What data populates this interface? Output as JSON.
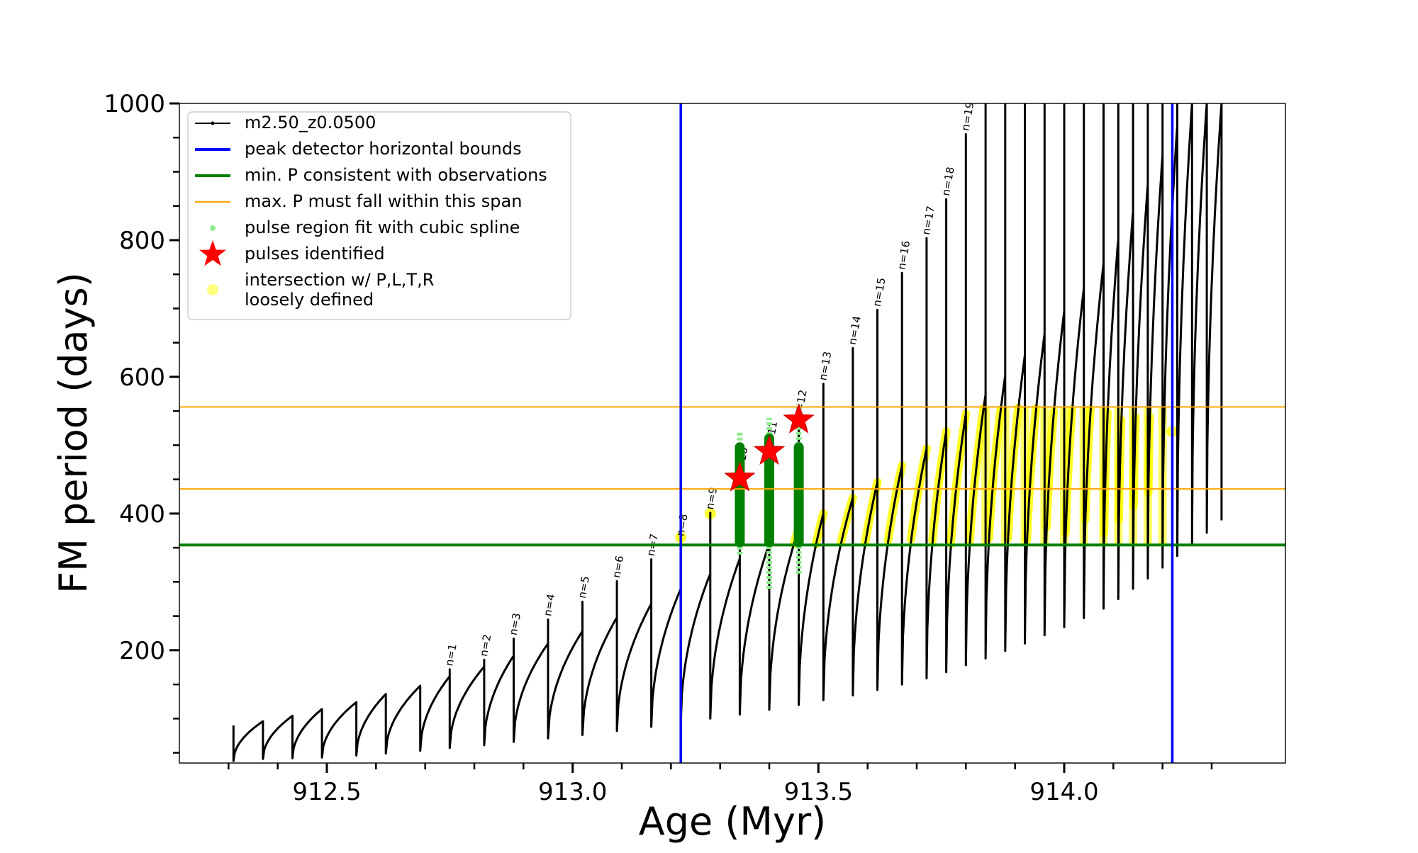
{
  "chart_data": {
    "type": "line",
    "title": "",
    "xlabel": "Age (Myr)",
    "ylabel": "FM period (days)",
    "xlim": [
      912.2,
      914.45
    ],
    "ylim": [
      35,
      1000
    ],
    "x_ticks": [
      912.5,
      913.0,
      913.5,
      914.0
    ],
    "x_tick_labels": [
      "912.5",
      "913.0",
      "913.5",
      "914.0"
    ],
    "y_ticks": [
      200,
      400,
      600,
      800,
      1000
    ],
    "y_tick_labels": [
      "200",
      "400",
      "600",
      "800",
      "1000"
    ],
    "grid": false,
    "legend_position": "top-left",
    "legend": [
      {
        "label": "m2.50_z0.0500",
        "color": "#000000",
        "kind": "line-marker"
      },
      {
        "label": "peak detector horizontal bounds",
        "color": "#0000ff",
        "kind": "line"
      },
      {
        "label": "min. P consistent with observations",
        "color": "#008000",
        "kind": "line"
      },
      {
        "label": "max. P must fall within this span",
        "color": "#ffa500",
        "kind": "thin-line"
      },
      {
        "label": "pulse region fit with cubic spline",
        "color": "#90ee90",
        "kind": "dot"
      },
      {
        "label": "pulses identified",
        "color": "#ff0000",
        "kind": "star"
      },
      {
        "label": "intersection w/ P,L,T,R\nloosely defined",
        "color": "#ffff00",
        "kind": "circle"
      }
    ],
    "vertical_lines": [
      {
        "series": "peak detector horizontal bounds",
        "x": 913.22,
        "color": "#0000ff"
      },
      {
        "series": "peak detector horizontal bounds",
        "x": 914.22,
        "color": "#0000ff"
      }
    ],
    "horizontal_lines": [
      {
        "series": "min. P consistent with observations",
        "y": 354,
        "color": "#008000"
      },
      {
        "series": "max. P must fall within this span",
        "y": 436,
        "color": "#ffa500"
      },
      {
        "series": "max. P must fall within this span",
        "y": 556,
        "color": "#ffa500"
      }
    ],
    "pulse_series_name": "m2.50_z0.0500",
    "start_age": 912.31,
    "first_pulse": {
      "min": 38,
      "max": 90
    },
    "pulses": [
      {
        "x": 912.37,
        "min": 41,
        "max": 96
      },
      {
        "x": 912.43,
        "min": 42,
        "max": 104
      },
      {
        "x": 912.49,
        "min": 43,
        "max": 114
      },
      {
        "x": 912.56,
        "min": 46,
        "max": 124
      },
      {
        "x": 912.62,
        "min": 49,
        "max": 136
      },
      {
        "x": 912.69,
        "min": 53,
        "max": 148
      },
      {
        "x": 912.75,
        "min": 57,
        "max": 162,
        "spike": 172,
        "label": "n=1"
      },
      {
        "x": 912.82,
        "min": 61,
        "max": 176,
        "spike": 186,
        "label": "n=2"
      },
      {
        "x": 912.88,
        "min": 66,
        "max": 192,
        "spike": 217,
        "label": "n=3"
      },
      {
        "x": 912.95,
        "min": 71,
        "max": 210,
        "spike": 245,
        "label": "n=4"
      },
      {
        "x": 913.02,
        "min": 76,
        "max": 228,
        "spike": 271,
        "label": "n=5"
      },
      {
        "x": 913.09,
        "min": 82,
        "max": 248,
        "spike": 301,
        "label": "n=6"
      },
      {
        "x": 913.16,
        "min": 88,
        "max": 268,
        "spike": 333,
        "label": "n=7"
      },
      {
        "x": 913.22,
        "min": 94,
        "max": 290,
        "spike": 362,
        "label": "n=8"
      },
      {
        "x": 913.28,
        "min": 100,
        "max": 312,
        "spike": 401,
        "label": "n=9"
      },
      {
        "x": 913.34,
        "min": 106,
        "max": 334,
        "spike": 450,
        "label": "n=10"
      },
      {
        "x": 913.4,
        "min": 113,
        "max": 356,
        "spike": 488,
        "label": "n=11"
      },
      {
        "x": 913.46,
        "min": 120,
        "max": 378,
        "spike": 534,
        "label": "n=12"
      },
      {
        "x": 913.51,
        "min": 127,
        "max": 400,
        "spike": 590,
        "label": "n=13"
      },
      {
        "x": 913.57,
        "min": 134,
        "max": 423,
        "spike": 642,
        "label": "n=14"
      },
      {
        "x": 913.62,
        "min": 142,
        "max": 446,
        "spike": 698,
        "label": "n=15"
      },
      {
        "x": 913.67,
        "min": 150,
        "max": 470,
        "spike": 752,
        "label": "n=16"
      },
      {
        "x": 913.72,
        "min": 159,
        "max": 495,
        "spike": 803,
        "label": "n=17"
      },
      {
        "x": 913.76,
        "min": 168,
        "max": 520,
        "spike": 860,
        "label": "n=18"
      },
      {
        "x": 913.8,
        "min": 178,
        "max": 546,
        "spike": 955,
        "label": "n=19"
      },
      {
        "x": 913.84,
        "min": 188,
        "max": 574,
        "spike": 1000
      },
      {
        "x": 913.88,
        "min": 199,
        "max": 602,
        "spike": 1000
      },
      {
        "x": 913.92,
        "min": 210,
        "max": 632,
        "spike": 1000
      },
      {
        "x": 913.96,
        "min": 222,
        "max": 663,
        "spike": 1000
      },
      {
        "x": 914.0,
        "min": 234,
        "max": 696,
        "spike": 1000
      },
      {
        "x": 914.04,
        "min": 247,
        "max": 730,
        "spike": 1000
      },
      {
        "x": 914.08,
        "min": 261,
        "max": 766,
        "spike": 1000
      },
      {
        "x": 914.11,
        "min": 275,
        "max": 803,
        "spike": 1000
      },
      {
        "x": 914.14,
        "min": 290,
        "max": 842,
        "spike": 1000
      },
      {
        "x": 914.17,
        "min": 305,
        "max": 882,
        "spike": 1000
      },
      {
        "x": 914.2,
        "min": 321,
        "max": 924,
        "spike": 1000
      },
      {
        "x": 914.23,
        "min": 338,
        "max": 968,
        "spike": 1000
      },
      {
        "x": 914.26,
        "min": 355,
        "max": 1000,
        "spike": 1000
      },
      {
        "x": 914.29,
        "min": 372,
        "max": 1000,
        "spike": 1000
      },
      {
        "x": 914.32,
        "min": 390,
        "max": 1000,
        "spike": 1000
      }
    ],
    "spline_fit_regions": [
      {
        "x": 913.34,
        "low": 340,
        "high": 520
      },
      {
        "x": 913.4,
        "low": 290,
        "high": 540
      },
      {
        "x": 913.46,
        "low": 312,
        "high": 560
      }
    ],
    "green_segments": [
      {
        "x": 913.34,
        "low": 358,
        "high": 497
      },
      {
        "x": 913.4,
        "low": 358,
        "high": 510
      },
      {
        "x": 913.46,
        "low": 358,
        "high": 497
      }
    ],
    "pulses_identified": [
      {
        "x": 913.34,
        "y": 452
      },
      {
        "x": 913.4,
        "y": 491
      },
      {
        "x": 913.46,
        "y": 537
      }
    ],
    "intersection_band": {
      "low": 354,
      "high": 556
    },
    "intersection_points": [
      {
        "x": 913.22,
        "y": 365
      },
      {
        "x": 913.28,
        "y": 400
      },
      {
        "x": 914.22,
        "y": 520
      }
    ]
  }
}
